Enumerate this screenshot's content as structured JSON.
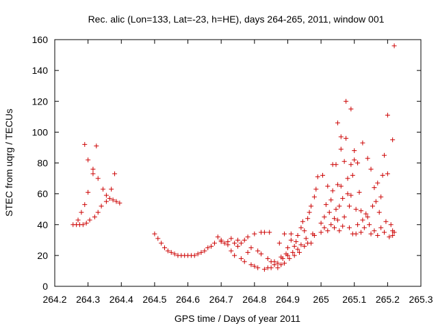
{
  "chart_data": {
    "type": "scatter",
    "title": "Rec. alic (Lon=133, Lat=-23, h=HE), days 264-265, 2011, window 001",
    "xlabel": "GPS time / Days of year 2011",
    "ylabel": "STEC from uqrg / TECUs",
    "xlim": [
      264.2,
      265.3
    ],
    "ylim": [
      0,
      160
    ],
    "xticks": [
      264.2,
      264.3,
      264.4,
      264.5,
      264.6,
      264.7,
      264.8,
      264.9,
      265.0,
      265.1,
      265.2,
      265.3
    ],
    "xtick_labels": [
      "264.2",
      "264.3",
      "264.4",
      "264.5",
      "264.6",
      "264.7",
      "264.8",
      "264.9",
      "265",
      "265.1",
      "265.2",
      "265.3"
    ],
    "yticks": [
      0,
      20,
      40,
      60,
      80,
      100,
      120,
      140,
      160
    ],
    "ytick_labels": [
      "0",
      "20",
      "40",
      "60",
      "80",
      "100",
      "120",
      "140",
      "160"
    ],
    "grid": false,
    "marker": "plus",
    "marker_color": "#cc0000",
    "points": [
      [
        264.255,
        40
      ],
      [
        264.265,
        40
      ],
      [
        264.27,
        43
      ],
      [
        264.275,
        40
      ],
      [
        264.28,
        48
      ],
      [
        264.285,
        40
      ],
      [
        264.29,
        92
      ],
      [
        264.29,
        53
      ],
      [
        264.295,
        41
      ],
      [
        264.3,
        82
      ],
      [
        264.3,
        61
      ],
      [
        264.305,
        43
      ],
      [
        264.315,
        76
      ],
      [
        264.315,
        73
      ],
      [
        264.32,
        45
      ],
      [
        264.325,
        91
      ],
      [
        264.33,
        70
      ],
      [
        264.33,
        48
      ],
      [
        264.34,
        52
      ],
      [
        264.345,
        63
      ],
      [
        264.355,
        59
      ],
      [
        264.355,
        55
      ],
      [
        264.365,
        57
      ],
      [
        264.37,
        63
      ],
      [
        264.375,
        56
      ],
      [
        264.38,
        73
      ],
      [
        264.385,
        55
      ],
      [
        264.395,
        54
      ],
      [
        264.5,
        34
      ],
      [
        264.51,
        31
      ],
      [
        264.52,
        28
      ],
      [
        264.53,
        25
      ],
      [
        264.54,
        23
      ],
      [
        264.55,
        22
      ],
      [
        264.56,
        21
      ],
      [
        264.57,
        20
      ],
      [
        264.58,
        20
      ],
      [
        264.59,
        20
      ],
      [
        264.6,
        20
      ],
      [
        264.61,
        20
      ],
      [
        264.62,
        20
      ],
      [
        264.63,
        21
      ],
      [
        264.64,
        22
      ],
      [
        264.65,
        23
      ],
      [
        264.66,
        25
      ],
      [
        264.67,
        26
      ],
      [
        264.68,
        28
      ],
      [
        264.69,
        32
      ],
      [
        264.7,
        30
      ],
      [
        264.7,
        29
      ],
      [
        264.71,
        28
      ],
      [
        264.72,
        29
      ],
      [
        264.72,
        27
      ],
      [
        264.73,
        31
      ],
      [
        264.73,
        23
      ],
      [
        264.74,
        28
      ],
      [
        264.74,
        20
      ],
      [
        264.75,
        30
      ],
      [
        264.75,
        26
      ],
      [
        264.76,
        18
      ],
      [
        264.76,
        28
      ],
      [
        264.77,
        30
      ],
      [
        264.77,
        16
      ],
      [
        264.78,
        22
      ],
      [
        264.78,
        32
      ],
      [
        264.79,
        14
      ],
      [
        264.79,
        25
      ],
      [
        264.8,
        13
      ],
      [
        264.8,
        34
      ],
      [
        264.81,
        23
      ],
      [
        264.81,
        12
      ],
      [
        264.82,
        35
      ],
      [
        264.82,
        21
      ],
      [
        264.83,
        11
      ],
      [
        264.83,
        35
      ],
      [
        264.84,
        18
      ],
      [
        264.84,
        12
      ],
      [
        264.845,
        35
      ],
      [
        264.85,
        16
      ],
      [
        264.85,
        12
      ],
      [
        264.86,
        14
      ],
      [
        264.86,
        16
      ],
      [
        264.87,
        12
      ],
      [
        264.87,
        15
      ],
      [
        264.875,
        28
      ],
      [
        264.88,
        14
      ],
      [
        264.88,
        19
      ],
      [
        264.885,
        18
      ],
      [
        264.89,
        15
      ],
      [
        264.89,
        34
      ],
      [
        264.895,
        21
      ],
      [
        264.9,
        20
      ],
      [
        264.9,
        25
      ],
      [
        264.905,
        18
      ],
      [
        264.91,
        30
      ],
      [
        264.91,
        34
      ],
      [
        264.915,
        22
      ],
      [
        264.92,
        26
      ],
      [
        264.92,
        20
      ],
      [
        264.925,
        29
      ],
      [
        264.93,
        24
      ],
      [
        264.93,
        33
      ],
      [
        264.935,
        22
      ],
      [
        264.94,
        38
      ],
      [
        264.94,
        27
      ],
      [
        264.945,
        42
      ],
      [
        264.95,
        36
      ],
      [
        264.95,
        26
      ],
      [
        264.955,
        31
      ],
      [
        264.96,
        28
      ],
      [
        264.96,
        44
      ],
      [
        264.965,
        48
      ],
      [
        264.97,
        28
      ],
      [
        264.97,
        52
      ],
      [
        264.975,
        34
      ],
      [
        264.98,
        58
      ],
      [
        264.98,
        33
      ],
      [
        264.985,
        63
      ],
      [
        264.99,
        71
      ],
      [
        265.0,
        41
      ],
      [
        265.0,
        35
      ],
      [
        265.005,
        72
      ],
      [
        265.01,
        45
      ],
      [
        265.01,
        38
      ],
      [
        265.015,
        53
      ],
      [
        265.02,
        65
      ],
      [
        265.02,
        36
      ],
      [
        265.025,
        48
      ],
      [
        265.03,
        56
      ],
      [
        265.03,
        40
      ],
      [
        265.035,
        79
      ],
      [
        265.035,
        62
      ],
      [
        265.04,
        44
      ],
      [
        265.04,
        38
      ],
      [
        265.045,
        50
      ],
      [
        265.045,
        79
      ],
      [
        265.05,
        106
      ],
      [
        265.05,
        66
      ],
      [
        265.05,
        43
      ],
      [
        265.055,
        52
      ],
      [
        265.055,
        36
      ],
      [
        265.06,
        97
      ],
      [
        265.06,
        89
      ],
      [
        265.06,
        65
      ],
      [
        265.065,
        57
      ],
      [
        265.065,
        39
      ],
      [
        265.07,
        81
      ],
      [
        265.07,
        45
      ],
      [
        265.075,
        120
      ],
      [
        265.075,
        96
      ],
      [
        265.08,
        70
      ],
      [
        265.08,
        60
      ],
      [
        265.085,
        52
      ],
      [
        265.085,
        38
      ],
      [
        265.09,
        115
      ],
      [
        265.09,
        79
      ],
      [
        265.09,
        59
      ],
      [
        265.095,
        72
      ],
      [
        265.095,
        34
      ],
      [
        265.1,
        88
      ],
      [
        265.1,
        82
      ],
      [
        265.105,
        50
      ],
      [
        265.105,
        34
      ],
      [
        265.11,
        80
      ],
      [
        265.11,
        40
      ],
      [
        265.115,
        61
      ],
      [
        265.12,
        49
      ],
      [
        265.12,
        35
      ],
      [
        265.125,
        93
      ],
      [
        265.125,
        43
      ],
      [
        265.13,
        38
      ],
      [
        265.135,
        47
      ],
      [
        265.14,
        83
      ],
      [
        265.14,
        45
      ],
      [
        265.145,
        40
      ],
      [
        265.15,
        34
      ],
      [
        265.15,
        76
      ],
      [
        265.155,
        52
      ],
      [
        265.16,
        64
      ],
      [
        265.16,
        36
      ],
      [
        265.165,
        55
      ],
      [
        265.17,
        67
      ],
      [
        265.17,
        33
      ],
      [
        265.175,
        48
      ],
      [
        265.18,
        58
      ],
      [
        265.18,
        38
      ],
      [
        265.185,
        72
      ],
      [
        265.19,
        85
      ],
      [
        265.19,
        35
      ],
      [
        265.195,
        42
      ],
      [
        265.2,
        111
      ],
      [
        265.2,
        73
      ],
      [
        265.205,
        32
      ],
      [
        265.21,
        40
      ],
      [
        265.215,
        36
      ],
      [
        265.215,
        95
      ],
      [
        265.22,
        156
      ],
      [
        265.22,
        35
      ],
      [
        265.215,
        33
      ]
    ]
  }
}
